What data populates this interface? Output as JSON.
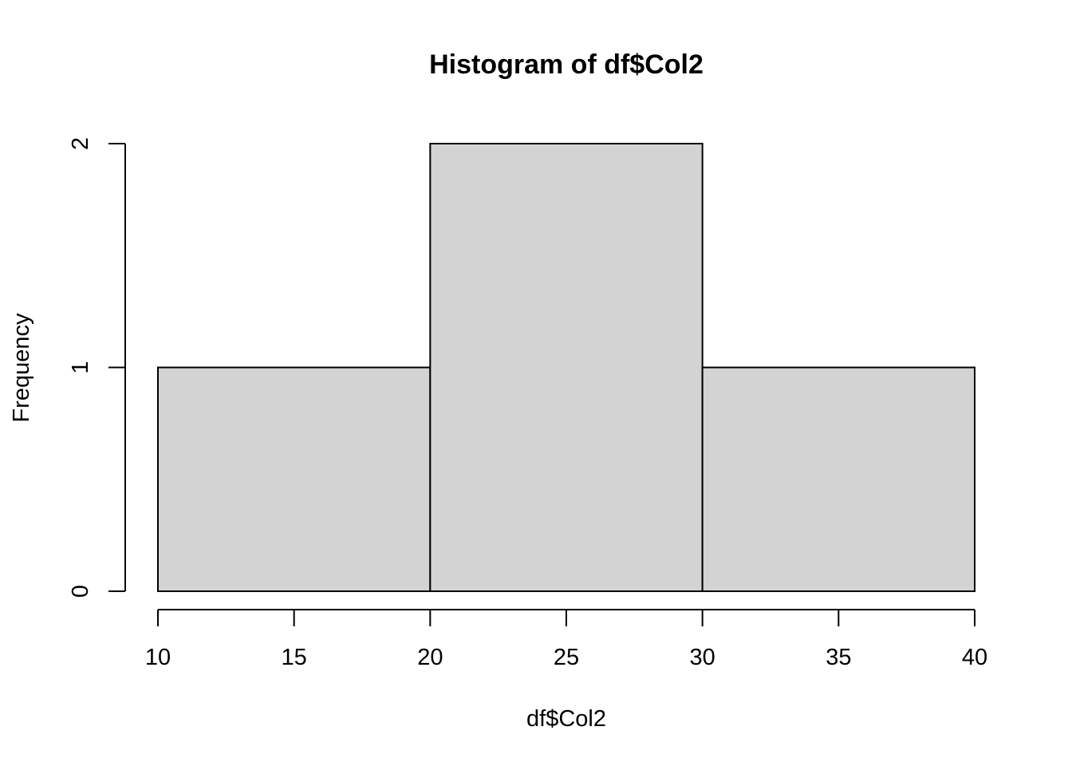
{
  "chart_data": {
    "type": "bar",
    "title": "Histogram of df$Col2",
    "xlabel": "df$Col2",
    "ylabel": "Frequency",
    "bins": [
      {
        "from": 10,
        "to": 20,
        "count": 1
      },
      {
        "from": 20,
        "to": 30,
        "count": 2
      },
      {
        "from": 30,
        "to": 40,
        "count": 1
      }
    ],
    "xlim": [
      10,
      40
    ],
    "ylim": [
      0,
      2
    ],
    "x_ticks": [
      10,
      15,
      20,
      25,
      30,
      35,
      40
    ],
    "y_ticks": [
      0,
      1,
      2
    ],
    "bar_color": "#d3d3d3",
    "grid": false,
    "legend": "none"
  }
}
